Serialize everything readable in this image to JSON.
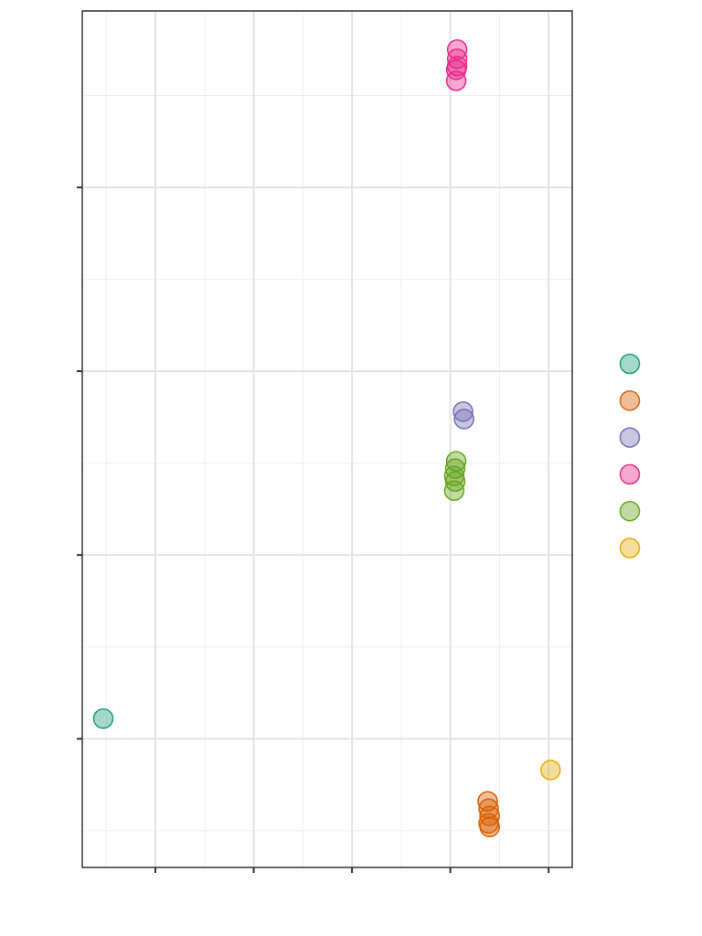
{
  "chart_data": {
    "type": "scatter",
    "xlim": [
      0.256,
      5.24
    ],
    "ylim": [
      0.3,
      4.96
    ],
    "xticks": [
      1,
      2,
      3,
      4,
      5
    ],
    "yticks": [
      1,
      2,
      3,
      4
    ],
    "xminor": [
      0.5,
      1.5,
      2.5,
      3.5,
      4.5
    ],
    "yminor": [
      0.5,
      1.5,
      2.5,
      3.5,
      4.5
    ],
    "grid": true,
    "series": [
      {
        "color": "#1b9e77",
        "x": [
          0.47
        ],
        "values": [
          1.11
        ]
      },
      {
        "color": "#d95f02",
        "x": [
          4.38,
          4.39,
          4.4,
          4.39,
          4.4
        ],
        "values": [
          0.66,
          0.62,
          0.58,
          0.54,
          0.52
        ]
      },
      {
        "color": "#7570b3",
        "x": [
          4.13,
          4.14
        ],
        "values": [
          2.78,
          2.74
        ]
      },
      {
        "color": "#e7298a",
        "x": [
          4.07,
          4.07,
          4.07,
          4.06,
          4.06
        ],
        "values": [
          4.75,
          4.7,
          4.66,
          4.64,
          4.58
        ]
      },
      {
        "color": "#66a61e",
        "x": [
          4.06,
          4.05,
          4.04,
          4.05,
          4.04
        ],
        "values": [
          2.51,
          2.47,
          2.43,
          2.4,
          2.35
        ]
      },
      {
        "color": "#e6ab02",
        "x": [
          5.02
        ],
        "values": [
          0.83
        ]
      }
    ]
  }
}
